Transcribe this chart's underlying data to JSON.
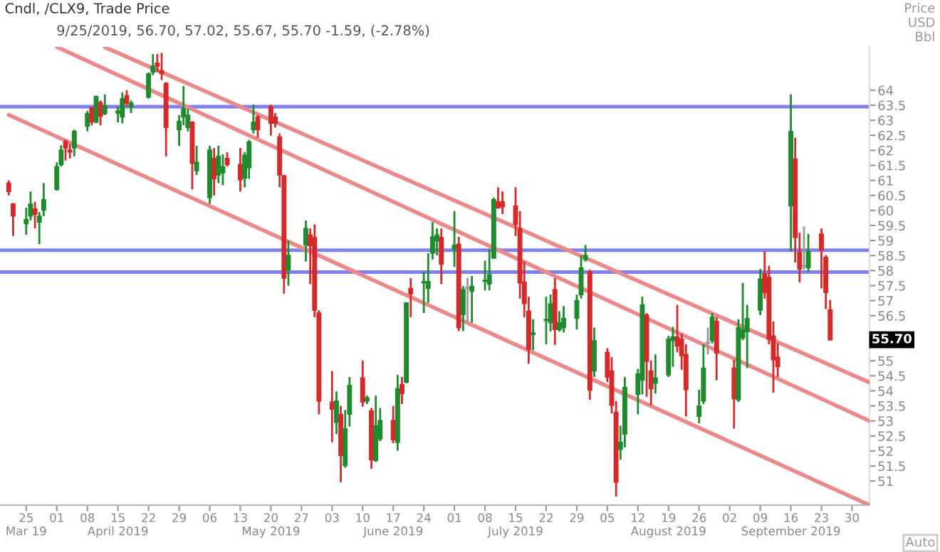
{
  "chart_data": {
    "type": "candlestick",
    "title": "Cndl, /CLX9, Trade Price",
    "subtitle": "9/25/2019, 56.70, 57.02, 55.67, 55.70 -1.59, (-2.78%)",
    "ylabel": "Price\nUSD\nBbl",
    "x": [
      "2019-03-21",
      "2019-03-22",
      "2019-03-25",
      "2019-03-26",
      "2019-03-27",
      "2019-03-28",
      "2019-03-29",
      "2019-04-01",
      "2019-04-02",
      "2019-04-03",
      "2019-04-04",
      "2019-04-05",
      "2019-04-08",
      "2019-04-09",
      "2019-04-10",
      "2019-04-11",
      "2019-04-12",
      "2019-04-15",
      "2019-04-16",
      "2019-04-17",
      "2019-04-18",
      "2019-04-22",
      "2019-04-23",
      "2019-04-24",
      "2019-04-25",
      "2019-04-26",
      "2019-04-29",
      "2019-04-30",
      "2019-05-01",
      "2019-05-02",
      "2019-05-03",
      "2019-05-06",
      "2019-05-07",
      "2019-05-08",
      "2019-05-09",
      "2019-05-10",
      "2019-05-13",
      "2019-05-14",
      "2019-05-15",
      "2019-05-16",
      "2019-05-17",
      "2019-05-20",
      "2019-05-21",
      "2019-05-22",
      "2019-05-23",
      "2019-05-24",
      "2019-05-28",
      "2019-05-29",
      "2019-05-30",
      "2019-05-31",
      "2019-06-03",
      "2019-06-04",
      "2019-06-05",
      "2019-06-06",
      "2019-06-07",
      "2019-06-10",
      "2019-06-11",
      "2019-06-12",
      "2019-06-13",
      "2019-06-14",
      "2019-06-17",
      "2019-06-18",
      "2019-06-19",
      "2019-06-20",
      "2019-06-21",
      "2019-06-24",
      "2019-06-25",
      "2019-06-26",
      "2019-06-27",
      "2019-06-28",
      "2019-07-01",
      "2019-07-02",
      "2019-07-03",
      "2019-07-04",
      "2019-07-05",
      "2019-07-08",
      "2019-07-09",
      "2019-07-10",
      "2019-07-11",
      "2019-07-12",
      "2019-07-15",
      "2019-07-16",
      "2019-07-17",
      "2019-07-18",
      "2019-07-19",
      "2019-07-22",
      "2019-07-23",
      "2019-07-24",
      "2019-07-25",
      "2019-07-26",
      "2019-07-29",
      "2019-07-30",
      "2019-07-31",
      "2019-08-01",
      "2019-08-02",
      "2019-08-05",
      "2019-08-06",
      "2019-08-07",
      "2019-08-08",
      "2019-08-09",
      "2019-08-12",
      "2019-08-13",
      "2019-08-14",
      "2019-08-15",
      "2019-08-16",
      "2019-08-19",
      "2019-08-20",
      "2019-08-21",
      "2019-08-22",
      "2019-08-23",
      "2019-08-26",
      "2019-08-27",
      "2019-08-28",
      "2019-08-29",
      "2019-08-30",
      "2019-09-03",
      "2019-09-04",
      "2019-09-05",
      "2019-09-06",
      "2019-09-09",
      "2019-09-10",
      "2019-09-11",
      "2019-09-12",
      "2019-09-13",
      "2019-09-16",
      "2019-09-17",
      "2019-09-18",
      "2019-09-19",
      "2019-09-20",
      "2019-09-23",
      "2019-09-24",
      "2019-09-25"
    ],
    "ohlc": [
      [
        60.91,
        61.0,
        60.5,
        60.63
      ],
      [
        60.22,
        60.25,
        59.15,
        59.81
      ],
      [
        59.56,
        60.09,
        59.19,
        59.7
      ],
      [
        59.81,
        60.63,
        59.67,
        60.22
      ],
      [
        60.06,
        60.29,
        59.4,
        59.87
      ],
      [
        59.61,
        59.95,
        58.88,
        59.81
      ],
      [
        60.01,
        60.91,
        59.81,
        60.36
      ],
      [
        60.7,
        61.6,
        60.66,
        61.46
      ],
      [
        61.53,
        62.17,
        61.46,
        62.01
      ],
      [
        62.28,
        62.35,
        61.66,
        62.08
      ],
      [
        62.01,
        62.21,
        61.73,
        61.94
      ],
      [
        62.08,
        62.69,
        61.8,
        62.63
      ],
      [
        62.8,
        63.31,
        62.63,
        63.22
      ],
      [
        63.41,
        63.45,
        62.83,
        62.94
      ],
      [
        62.94,
        63.82,
        62.9,
        63.79
      ],
      [
        63.59,
        63.66,
        62.83,
        63.13
      ],
      [
        63.22,
        63.86,
        63.17,
        63.49
      ],
      [
        63.24,
        63.45,
        62.93,
        63.31
      ],
      [
        63.11,
        63.93,
        62.9,
        63.72
      ],
      [
        63.82,
        64.0,
        63.45,
        63.56
      ],
      [
        63.45,
        63.66,
        63.24,
        63.57
      ],
      [
        63.77,
        64.59,
        63.72,
        64.55
      ],
      [
        64.6,
        65.2,
        64.5,
        64.8
      ],
      [
        64.9,
        65.2,
        64.6,
        64.8
      ],
      [
        64.65,
        65.24,
        64.34,
        64.55
      ],
      [
        64.23,
        64.27,
        61.8,
        62.76
      ],
      [
        62.69,
        63.17,
        62.15,
        62.97
      ],
      [
        63.11,
        64.14,
        62.83,
        63.38
      ],
      [
        62.76,
        63.38,
        62.63,
        63.17
      ],
      [
        62.94,
        62.97,
        60.7,
        61.57
      ],
      [
        61.32,
        62.15,
        61.18,
        61.6
      ],
      [
        60.43,
        62.15,
        60.22,
        62.01
      ],
      [
        61.73,
        62.08,
        60.5,
        61.05
      ],
      [
        61.18,
        62.15,
        60.91,
        61.8
      ],
      [
        61.25,
        61.87,
        60.84,
        61.46
      ],
      [
        61.73,
        61.94,
        61.46,
        61.53
      ],
      [
        61.53,
        62.08,
        60.63,
        61.02
      ],
      [
        61.07,
        61.94,
        60.77,
        61.84
      ],
      [
        61.42,
        62.35,
        61.05,
        62.28
      ],
      [
        62.69,
        63.52,
        62.56,
        62.94
      ],
      [
        63.11,
        63.17,
        62.42,
        62.69
      ],
      [
        63.45,
        63.52,
        62.49,
        62.9
      ],
      [
        63.11,
        63.24,
        62.76,
        62.9
      ],
      [
        62.45,
        62.56,
        60.77,
        61.18
      ],
      [
        61.16,
        61.18,
        57.23,
        57.75
      ],
      [
        58.03,
        58.99,
        57.5,
        58.51
      ],
      [
        58.85,
        59.67,
        58.3,
        59.4
      ],
      [
        59.19,
        59.4,
        57.55,
        58.82
      ],
      [
        59.1,
        59.54,
        56.45,
        56.68
      ],
      [
        56.59,
        56.68,
        53.22,
        53.66
      ],
      [
        53.63,
        54.66,
        52.29,
        53.39
      ],
      [
        52.95,
        53.98,
        52.56,
        53.66
      ],
      [
        53.22,
        53.5,
        50.96,
        51.85
      ],
      [
        51.51,
        53.36,
        51.44,
        52.74
      ],
      [
        53.22,
        54.46,
        52.81,
        54.18
      ],
      [
        54.43,
        55.01,
        53.47,
        53.63
      ],
      [
        53.66,
        53.84,
        53.56,
        53.77
      ],
      [
        53.33,
        53.43,
        51.41,
        51.71
      ],
      [
        51.68,
        53.84,
        51.64,
        52.84
      ],
      [
        52.4,
        53.43,
        52.33,
        53.02
      ],
      [
        53.02,
        53.5,
        52.26,
        52.37
      ],
      [
        52.29,
        54.53,
        52.01,
        54.07
      ],
      [
        54.21,
        54.46,
        53.56,
        53.91
      ],
      [
        54.29,
        56.93,
        54.25,
        56.93
      ],
      [
        57.41,
        57.75,
        56.45,
        57.23
      ],
      [
        57.59,
        57.96,
        56.59,
        57.64
      ],
      [
        57.41,
        58.58,
        56.93,
        57.64
      ],
      [
        58.58,
        59.61,
        58.37,
        59.12
      ],
      [
        58.99,
        59.4,
        58.51,
        59.19
      ],
      [
        59.1,
        59.4,
        57.55,
        58.21
      ],
      [
        58.71,
        59.98,
        58.12,
        58.85
      ],
      [
        58.88,
        59.12,
        55.99,
        56.1
      ],
      [
        56.54,
        57.48,
        55.99,
        57.37
      ],
      [
        57.44,
        57.75,
        56.27,
        57.41
      ],
      [
        57.31,
        57.82,
        56.27,
        57.48
      ],
      [
        57.64,
        58.33,
        57.34,
        57.68
      ],
      [
        57.55,
        58.71,
        57.34,
        57.86
      ],
      [
        58.41,
        60.43,
        58.41,
        60.36
      ],
      [
        60.29,
        60.77,
        60.06,
        60.09
      ],
      [
        60.29,
        60.63,
        59.88,
        60.12
      ],
      [
        60.15,
        60.77,
        59.15,
        59.54
      ],
      [
        59.4,
        59.98,
        57.07,
        57.59
      ],
      [
        57.62,
        58.3,
        56.45,
        56.9
      ],
      [
        56.65,
        57.13,
        54.9,
        55.39
      ],
      [
        55.87,
        56.38,
        55.35,
        55.93
      ],
      [
        56.34,
        57.13,
        55.55,
        56.38
      ],
      [
        56.27,
        57.2,
        55.97,
        56.9
      ],
      [
        57.37,
        57.75,
        55.53,
        56.04
      ],
      [
        56.04,
        56.65,
        55.97,
        56.27
      ],
      [
        56.1,
        56.82,
        55.94,
        56.41
      ],
      [
        56.41,
        57.2,
        56.04,
        57.0
      ],
      [
        57.2,
        58.51,
        57.07,
        58.09
      ],
      [
        58.37,
        58.85,
        58.3,
        58.51
      ],
      [
        57.96,
        58.03,
        53.7,
        54.02
      ],
      [
        54.66,
        56.1,
        54.46,
        55.67
      ],
      [
        55.28,
        55.42,
        54.29,
        54.46
      ],
      [
        54.66,
        55.12,
        53.25,
        53.52
      ],
      [
        53.29,
        53.66,
        50.48,
        50.96
      ],
      [
        52.05,
        52.84,
        51.71,
        52.29
      ],
      [
        52.56,
        54.46,
        52.12,
        54.11
      ],
      [
        53.88,
        54.73,
        53.22,
        54.57
      ],
      [
        54.35,
        57.13,
        53.88,
        56.86
      ],
      [
        56.52,
        56.59,
        53.8,
        54.98
      ],
      [
        54.66,
        55.01,
        53.52,
        54.07
      ],
      [
        54.25,
        55.21,
        53.91,
        54.43
      ],
      [
        54.53,
        55.83,
        54.46,
        55.72
      ],
      [
        55.67,
        56.13,
        54.8,
        55.8
      ],
      [
        55.79,
        56.86,
        55.28,
        55.49
      ],
      [
        55.72,
        55.9,
        54.7,
        55.17
      ],
      [
        55.21,
        55.55,
        53.15,
        54.04
      ],
      [
        53.15,
        54.04,
        52.92,
        53.5
      ],
      [
        53.66,
        55.55,
        53.56,
        54.76
      ],
      [
        55.58,
        56.1,
        55.21,
        55.61
      ],
      [
        55.67,
        56.59,
        55.58,
        56.45
      ],
      [
        56.31,
        56.45,
        54.35,
        55.26
      ],
      [
        54.76,
        55.03,
        52.74,
        53.74
      ],
      [
        53.7,
        56.38,
        53.63,
        56.1
      ],
      [
        55.76,
        57.59,
        55.69,
        56.04
      ],
      [
        55.97,
        56.86,
        54.76,
        56.41
      ],
      [
        56.68,
        58.05,
        56.52,
        57.72
      ],
      [
        57.89,
        58.64,
        57.07,
        57.27
      ],
      [
        57.78,
        58.16,
        55.55,
        55.72
      ],
      [
        55.83,
        56.31,
        53.94,
        55.03
      ],
      [
        55.12,
        55.58,
        54.46,
        54.8
      ],
      [
        60.15,
        63.86,
        58.64,
        62.63
      ],
      [
        61.71,
        62.42,
        58.27,
        59.1
      ],
      [
        58.6,
        59.26,
        57.61,
        58.05
      ],
      [
        58.16,
        59.47,
        58.03,
        58.14
      ],
      [
        58.09,
        59.22,
        57.96,
        58.64
      ],
      [
        59.22,
        59.4,
        57.41,
        58.69
      ],
      [
        58.44,
        58.51,
        56.72,
        57.27
      ],
      [
        56.7,
        57.02,
        55.67,
        55.7
      ]
    ],
    "colors": [
      "#d42a2a",
      "#d42a2a",
      "#1f8a2e",
      "#1f8a2e",
      "#d42a2a",
      "#1f8a2e",
      "#1f8a2e",
      "#1f8a2e",
      "#1f8a2e",
      "#d42a2a",
      "#d42a2a",
      "#1f8a2e",
      "#1f8a2e",
      "#d42a2a",
      "#1f8a2e",
      "#d42a2a",
      "#1f8a2e",
      "#1f8a2e",
      "#1f8a2e",
      "#d42a2a",
      "#1f8a2e",
      "#1f8a2e",
      "#1f8a2e",
      "#d42a2a",
      "#d42a2a",
      "#d42a2a",
      "#1f8a2e",
      "#1f8a2e",
      "#1f8a2e",
      "#d42a2a",
      "#1f8a2e",
      "#1f8a2e",
      "#d42a2a",
      "#1f8a2e",
      "#1f8a2e",
      "#d42a2a",
      "#d42a2a",
      "#1f8a2e",
      "#1f8a2e",
      "#1f8a2e",
      "#d42a2a",
      "#d42a2a",
      "#d42a2a",
      "#d42a2a",
      "#d42a2a",
      "#1f8a2e",
      "#1f8a2e",
      "#d42a2a",
      "#d42a2a",
      "#d42a2a",
      "#d42a2a",
      "#1f8a2e",
      "#d42a2a",
      "#1f8a2e",
      "#1f8a2e",
      "#d42a2a",
      "#1f8a2e",
      "#d42a2a",
      "#1f8a2e",
      "#1f8a2e",
      "#d42a2a",
      "#1f8a2e",
      "#d42a2a",
      "#1f8a2e",
      "#d42a2a",
      "#1f8a2e",
      "#1f8a2e",
      "#1f8a2e",
      "#1f8a2e",
      "#d42a2a",
      "#1f8a2e",
      "#d42a2a",
      "#1f8a2e",
      "#999999",
      "#1f8a2e",
      "#1f8a2e",
      "#1f8a2e",
      "#1f8a2e",
      "#d42a2a",
      "#d42a2a",
      "#d42a2a",
      "#d42a2a",
      "#d42a2a",
      "#d42a2a",
      "#1f8a2e",
      "#1f8a2e",
      "#1f8a2e",
      "#d42a2a",
      "#1f8a2e",
      "#1f8a2e",
      "#1f8a2e",
      "#1f8a2e",
      "#1f8a2e",
      "#d42a2a",
      "#1f8a2e",
      "#d42a2a",
      "#d42a2a",
      "#d42a2a",
      "#1f8a2e",
      "#1f8a2e",
      "#1f8a2e",
      "#1f8a2e",
      "#d42a2a",
      "#d42a2a",
      "#1f8a2e",
      "#1f8a2e",
      "#1f8a2e",
      "#d42a2a",
      "#d42a2a",
      "#d42a2a",
      "#1f8a2e",
      "#1f8a2e",
      "#999999",
      "#1f8a2e",
      "#d42a2a",
      "#d42a2a",
      "#1f8a2e",
      "#1f8a2e",
      "#1f8a2e",
      "#1f8a2e",
      "#d42a2a",
      "#d42a2a",
      "#d42a2a",
      "#d42a2a",
      "#1f8a2e",
      "#d42a2a",
      "#d42a2a",
      "#999999",
      "#1f8a2e",
      "#d42a2a",
      "#d42a2a",
      "#d42a2a"
    ],
    "series": [
      {
        "type": "line",
        "color": "#ea8a8a",
        "x": [
          "2019-04-12",
          "2019-10-04"
        ],
        "values": [
          65.43,
          54.28
        ]
      },
      {
        "type": "line",
        "color": "#ea8a8a",
        "x": [
          "2019-04-01",
          "2019-10-04"
        ],
        "values": [
          65.44,
          53.0
        ]
      },
      {
        "type": "line",
        "color": "#ea8a8a",
        "x": [
          "2019-03-21",
          "2019-10-04"
        ],
        "values": [
          63.18,
          50.2
        ]
      }
    ],
    "ref_lines": [
      {
        "axis": "y",
        "value": 63.45,
        "color": "#8080ee"
      },
      {
        "axis": "y",
        "value": 58.68,
        "color": "#8080ee"
      },
      {
        "axis": "y",
        "value": 57.95,
        "color": "#8080ee"
      }
    ],
    "xlim": [
      "2019-03-19",
      "2019-10-04"
    ],
    "ylim": [
      50.2,
      65.44
    ],
    "yticks": [
      51,
      51.5,
      52,
      52.5,
      53,
      53.5,
      54,
      54.5,
      55,
      56.5,
      57,
      57.5,
      58,
      58.5,
      59,
      59.5,
      60,
      60.5,
      61,
      61.5,
      62,
      62.5,
      63,
      63.5,
      64
    ],
    "xticks": [
      {
        "value": "2019-03-25",
        "label": "25\nMar 19"
      },
      {
        "value": "2019-04-01",
        "label": "01"
      },
      {
        "value": "2019-04-08",
        "label": "08"
      },
      {
        "value": "2019-04-15",
        "label": "15\nApril 2019"
      },
      {
        "value": "2019-04-22",
        "label": "22"
      },
      {
        "value": "2019-04-29",
        "label": "29"
      },
      {
        "value": "2019-05-06",
        "label": "06"
      },
      {
        "value": "2019-05-13",
        "label": "13"
      },
      {
        "value": "2019-05-20",
        "label": "20\nMay 2019"
      },
      {
        "value": "2019-05-27",
        "label": "27"
      },
      {
        "value": "2019-06-03",
        "label": "03"
      },
      {
        "value": "2019-06-10",
        "label": "10"
      },
      {
        "value": "2019-06-17",
        "label": "17\nJune 2019"
      },
      {
        "value": "2019-06-24",
        "label": "24"
      },
      {
        "value": "2019-07-01",
        "label": "01"
      },
      {
        "value": "2019-07-08",
        "label": "08"
      },
      {
        "value": "2019-07-15",
        "label": "15\nJuly 2019"
      },
      {
        "value": "2019-07-22",
        "label": "22"
      },
      {
        "value": "2019-07-29",
        "label": "29"
      },
      {
        "value": "2019-08-05",
        "label": "05"
      },
      {
        "value": "2019-08-12",
        "label": "12"
      },
      {
        "value": "2019-08-19",
        "label": "19\nAugust 2019"
      },
      {
        "value": "2019-08-26",
        "label": "26"
      },
      {
        "value": "2019-09-02",
        "label": "02"
      },
      {
        "value": "2019-09-09",
        "label": "09"
      },
      {
        "value": "2019-09-16",
        "label": "16\nSeptember 2019"
      },
      {
        "value": "2019-09-23",
        "label": "23"
      },
      {
        "value": "2019-09-30",
        "label": "30"
      }
    ],
    "annotations": [
      "55.70",
      "Auto"
    ]
  }
}
